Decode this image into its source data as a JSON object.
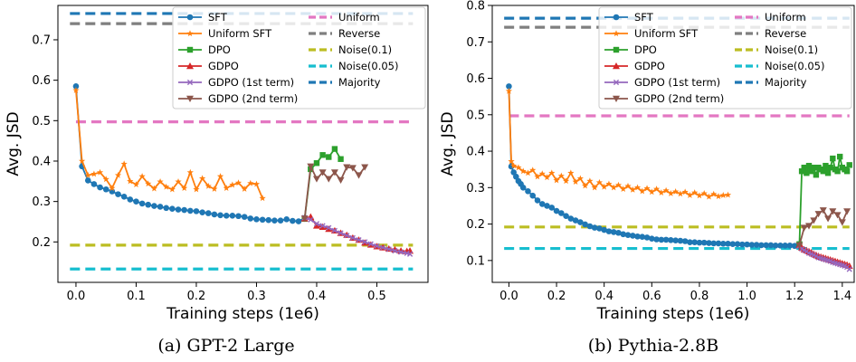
{
  "legend": [
    {
      "key": "sft",
      "label": "SFT",
      "color": "#1f77b4",
      "marker": "circle"
    },
    {
      "key": "usft",
      "label": "Uniform SFT",
      "color": "#ff7f0e",
      "marker": "star"
    },
    {
      "key": "dpo",
      "label": "DPO",
      "color": "#2ca02c",
      "marker": "square"
    },
    {
      "key": "gdpo",
      "label": "GDPO",
      "color": "#d62728",
      "marker": "triangle-up"
    },
    {
      "key": "g1",
      "label": "GDPO (1st term)",
      "color": "#9467bd",
      "marker": "x"
    },
    {
      "key": "g2",
      "label": "GDPO (2nd term)",
      "color": "#8c564b",
      "marker": "triangle-down"
    },
    {
      "key": "uniform",
      "label": "Uniform",
      "color": "#e377c2",
      "marker": "dashed"
    },
    {
      "key": "reverse",
      "label": "Reverse",
      "color": "#7f7f7f",
      "marker": "dashed"
    },
    {
      "key": "n01",
      "label": "Noise(0.1)",
      "color": "#bcbd22",
      "marker": "dashed"
    },
    {
      "key": "n005",
      "label": "Noise(0.05)",
      "color": "#17becf",
      "marker": "dashed"
    },
    {
      "key": "majority",
      "label": "Majority",
      "color": "#1f77b4",
      "marker": "dashed"
    }
  ],
  "chart_data": [
    {
      "type": "line",
      "caption": "(a) GPT-2 Large",
      "xlabel": "Training steps (1e6)",
      "ylabel": "Avg. JSD",
      "xlim": [
        -0.03,
        0.585
      ],
      "ylim": [
        0.1,
        0.785
      ],
      "xticks": [
        0.0,
        0.1,
        0.2,
        0.3,
        0.4,
        0.5
      ],
      "xticklabels": [
        "0.0",
        "0.1",
        "0.2",
        "0.3",
        "0.4",
        "0.5"
      ],
      "yticks": [
        0.2,
        0.3,
        0.4,
        0.5,
        0.6,
        0.7
      ],
      "yticklabels": [
        "0.2",
        "0.3",
        "0.4",
        "0.5",
        "0.6",
        "0.7"
      ],
      "hlines": [
        {
          "key": "majority",
          "y": 0.765,
          "x": [
            -0.01,
            0.56
          ]
        },
        {
          "key": "reverse",
          "y": 0.74,
          "x": [
            -0.01,
            0.56
          ]
        },
        {
          "key": "uniform",
          "y": 0.497,
          "x": [
            0.0,
            0.56
          ]
        },
        {
          "key": "n01",
          "y": 0.192,
          "x": [
            -0.01,
            0.56
          ]
        },
        {
          "key": "n005",
          "y": 0.133,
          "x": [
            -0.01,
            0.56
          ]
        }
      ],
      "series": [
        {
          "key": "sft",
          "x": [
            0.0,
            0.01,
            0.02,
            0.03,
            0.04,
            0.05,
            0.06,
            0.07,
            0.08,
            0.09,
            0.1,
            0.11,
            0.12,
            0.13,
            0.14,
            0.15,
            0.16,
            0.17,
            0.18,
            0.19,
            0.2,
            0.21,
            0.22,
            0.23,
            0.24,
            0.25,
            0.26,
            0.27,
            0.28,
            0.29,
            0.3,
            0.31,
            0.32,
            0.33,
            0.34,
            0.35,
            0.36,
            0.37,
            0.38
          ],
          "y": [
            0.585,
            0.387,
            0.352,
            0.343,
            0.335,
            0.33,
            0.325,
            0.318,
            0.312,
            0.305,
            0.3,
            0.295,
            0.292,
            0.289,
            0.287,
            0.284,
            0.282,
            0.28,
            0.279,
            0.277,
            0.276,
            0.273,
            0.271,
            0.268,
            0.266,
            0.265,
            0.265,
            0.264,
            0.262,
            0.258,
            0.256,
            0.255,
            0.254,
            0.253,
            0.253,
            0.256,
            0.252,
            0.251,
            0.259
          ]
        },
        {
          "key": "usft",
          "x": [
            0.0,
            0.01,
            0.02,
            0.03,
            0.04,
            0.05,
            0.06,
            0.07,
            0.08,
            0.09,
            0.1,
            0.11,
            0.12,
            0.13,
            0.14,
            0.15,
            0.16,
            0.17,
            0.18,
            0.19,
            0.2,
            0.21,
            0.22,
            0.23,
            0.24,
            0.25,
            0.26,
            0.27,
            0.28,
            0.29,
            0.3,
            0.31
          ],
          "y": [
            0.575,
            0.4,
            0.365,
            0.368,
            0.372,
            0.355,
            0.333,
            0.365,
            0.393,
            0.35,
            0.342,
            0.362,
            0.344,
            0.332,
            0.349,
            0.336,
            0.33,
            0.349,
            0.333,
            0.372,
            0.33,
            0.357,
            0.338,
            0.331,
            0.362,
            0.333,
            0.341,
            0.346,
            0.331,
            0.345,
            0.343,
            0.308
          ]
        },
        {
          "key": "dpo",
          "x": [
            0.38,
            0.39,
            0.4,
            0.41,
            0.42,
            0.43,
            0.44
          ],
          "y": [
            0.257,
            0.38,
            0.395,
            0.415,
            0.41,
            0.43,
            0.405
          ]
        },
        {
          "key": "gdpo",
          "x": [
            0.38,
            0.39,
            0.4,
            0.41,
            0.42,
            0.43,
            0.44,
            0.45,
            0.46,
            0.47,
            0.48,
            0.49,
            0.5,
            0.51,
            0.52,
            0.53,
            0.54,
            0.55,
            0.555
          ],
          "y": [
            0.258,
            0.262,
            0.24,
            0.237,
            0.232,
            0.228,
            0.222,
            0.217,
            0.21,
            0.205,
            0.198,
            0.193,
            0.189,
            0.186,
            0.183,
            0.181,
            0.178,
            0.177,
            0.178
          ]
        },
        {
          "key": "g1",
          "x": [
            0.38,
            0.39,
            0.4,
            0.41,
            0.42,
            0.43,
            0.44,
            0.45,
            0.46,
            0.47,
            0.48,
            0.49,
            0.5,
            0.51,
            0.52,
            0.53,
            0.54,
            0.55,
            0.555
          ],
          "y": [
            0.26,
            0.255,
            0.245,
            0.24,
            0.235,
            0.228,
            0.222,
            0.216,
            0.21,
            0.205,
            0.2,
            0.195,
            0.19,
            0.186,
            0.182,
            0.178,
            0.175,
            0.172,
            0.17
          ]
        },
        {
          "key": "g2",
          "x": [
            0.38,
            0.39,
            0.4,
            0.41,
            0.42,
            0.43,
            0.44,
            0.45,
            0.46,
            0.47,
            0.48
          ],
          "y": [
            0.258,
            0.387,
            0.356,
            0.372,
            0.356,
            0.372,
            0.353,
            0.385,
            0.383,
            0.365,
            0.385
          ]
        }
      ]
    },
    {
      "type": "line",
      "caption": "(b) Pythia-2.8B",
      "xlabel": "Training steps (1e6)",
      "ylabel": "Avg. JSD",
      "xlim": [
        -0.07,
        1.45
      ],
      "ylim": [
        0.04,
        0.8
      ],
      "xticks": [
        0.0,
        0.2,
        0.4,
        0.6,
        0.8,
        1.0,
        1.2,
        1.4
      ],
      "xticklabels": [
        "0.0",
        "0.2",
        "0.4",
        "0.6",
        "0.8",
        "1.0",
        "1.2",
        "1.4"
      ],
      "yticks": [
        0.1,
        0.2,
        0.3,
        0.4,
        0.5,
        0.6,
        0.7,
        0.8
      ],
      "yticklabels": [
        "0.1",
        "0.2",
        "0.3",
        "0.4",
        "0.5",
        "0.6",
        "0.7",
        "0.8"
      ],
      "hlines": [
        {
          "key": "majority",
          "y": 0.765,
          "x": [
            -0.02,
            1.43
          ]
        },
        {
          "key": "reverse",
          "y": 0.74,
          "x": [
            -0.02,
            1.43
          ]
        },
        {
          "key": "uniform",
          "y": 0.497,
          "x": [
            0.0,
            1.43
          ]
        },
        {
          "key": "n01",
          "y": 0.192,
          "x": [
            -0.02,
            1.43
          ]
        },
        {
          "key": "n005",
          "y": 0.133,
          "x": [
            -0.02,
            1.43
          ]
        }
      ],
      "series": [
        {
          "key": "sft",
          "x": [
            0.0,
            0.01,
            0.02,
            0.03,
            0.04,
            0.05,
            0.06,
            0.08,
            0.1,
            0.12,
            0.14,
            0.16,
            0.18,
            0.2,
            0.22,
            0.24,
            0.26,
            0.28,
            0.3,
            0.32,
            0.34,
            0.36,
            0.38,
            0.4,
            0.42,
            0.44,
            0.46,
            0.48,
            0.5,
            0.52,
            0.54,
            0.56,
            0.58,
            0.6,
            0.62,
            0.64,
            0.66,
            0.68,
            0.7,
            0.72,
            0.74,
            0.76,
            0.78,
            0.8,
            0.82,
            0.84,
            0.86,
            0.88,
            0.9,
            0.92,
            0.94,
            0.96,
            0.98,
            1.0,
            1.02,
            1.04,
            1.06,
            1.08,
            1.1,
            1.12,
            1.14,
            1.16,
            1.18,
            1.2,
            1.22
          ],
          "y": [
            0.578,
            0.358,
            0.342,
            0.33,
            0.318,
            0.31,
            0.3,
            0.29,
            0.278,
            0.265,
            0.255,
            0.25,
            0.245,
            0.236,
            0.23,
            0.222,
            0.215,
            0.21,
            0.205,
            0.199,
            0.194,
            0.19,
            0.188,
            0.184,
            0.18,
            0.178,
            0.176,
            0.172,
            0.17,
            0.168,
            0.166,
            0.165,
            0.163,
            0.16,
            0.158,
            0.157,
            0.157,
            0.156,
            0.155,
            0.154,
            0.153,
            0.15,
            0.15,
            0.149,
            0.149,
            0.148,
            0.147,
            0.147,
            0.146,
            0.146,
            0.145,
            0.145,
            0.144,
            0.144,
            0.143,
            0.143,
            0.142,
            0.142,
            0.142,
            0.141,
            0.141,
            0.141,
            0.141,
            0.14,
            0.14
          ]
        },
        {
          "key": "usft",
          "x": [
            0.0,
            0.01,
            0.02,
            0.04,
            0.06,
            0.08,
            0.1,
            0.12,
            0.14,
            0.16,
            0.18,
            0.2,
            0.22,
            0.24,
            0.26,
            0.28,
            0.3,
            0.32,
            0.34,
            0.36,
            0.38,
            0.4,
            0.42,
            0.44,
            0.46,
            0.48,
            0.5,
            0.52,
            0.54,
            0.56,
            0.58,
            0.6,
            0.62,
            0.64,
            0.66,
            0.68,
            0.7,
            0.72,
            0.74,
            0.76,
            0.78,
            0.8,
            0.82,
            0.84,
            0.86,
            0.88,
            0.9,
            0.92
          ],
          "y": [
            0.565,
            0.372,
            0.36,
            0.355,
            0.345,
            0.34,
            0.348,
            0.33,
            0.338,
            0.328,
            0.34,
            0.32,
            0.332,
            0.318,
            0.34,
            0.316,
            0.325,
            0.305,
            0.318,
            0.3,
            0.314,
            0.302,
            0.31,
            0.3,
            0.307,
            0.296,
            0.304,
            0.294,
            0.3,
            0.29,
            0.298,
            0.288,
            0.296,
            0.286,
            0.292,
            0.284,
            0.289,
            0.283,
            0.288,
            0.279,
            0.286,
            0.278,
            0.284,
            0.275,
            0.282,
            0.276,
            0.279,
            0.28
          ]
        },
        {
          "key": "dpo",
          "x": [
            1.22,
            1.23,
            1.24,
            1.25,
            1.26,
            1.27,
            1.28,
            1.29,
            1.3,
            1.31,
            1.32,
            1.33,
            1.34,
            1.35,
            1.36,
            1.37,
            1.38,
            1.39,
            1.4,
            1.41,
            1.42,
            1.43
          ],
          "y": [
            0.145,
            0.345,
            0.355,
            0.34,
            0.36,
            0.345,
            0.355,
            0.335,
            0.355,
            0.35,
            0.345,
            0.36,
            0.34,
            0.355,
            0.38,
            0.35,
            0.345,
            0.385,
            0.355,
            0.35,
            0.345,
            0.362
          ]
        },
        {
          "key": "gdpo",
          "x": [
            1.22,
            1.23,
            1.24,
            1.25,
            1.26,
            1.27,
            1.28,
            1.29,
            1.3,
            1.31,
            1.32,
            1.33,
            1.34,
            1.35,
            1.36,
            1.37,
            1.38,
            1.39,
            1.4,
            1.41,
            1.42,
            1.43
          ],
          "y": [
            0.142,
            0.135,
            0.13,
            0.128,
            0.125,
            0.122,
            0.118,
            0.115,
            0.112,
            0.11,
            0.108,
            0.106,
            0.104,
            0.102,
            0.1,
            0.098,
            0.096,
            0.094,
            0.092,
            0.09,
            0.088,
            0.085
          ]
        },
        {
          "key": "g1",
          "x": [
            1.22,
            1.23,
            1.24,
            1.25,
            1.26,
            1.27,
            1.28,
            1.29,
            1.3,
            1.31,
            1.32,
            1.33,
            1.34,
            1.35,
            1.36,
            1.37,
            1.38,
            1.39,
            1.4,
            1.41,
            1.42,
            1.43
          ],
          "y": [
            0.14,
            0.132,
            0.128,
            0.125,
            0.12,
            0.118,
            0.115,
            0.112,
            0.108,
            0.106,
            0.104,
            0.102,
            0.1,
            0.098,
            0.095,
            0.093,
            0.091,
            0.089,
            0.087,
            0.085,
            0.082,
            0.076
          ]
        },
        {
          "key": "g2",
          "x": [
            1.22,
            1.24,
            1.26,
            1.28,
            1.3,
            1.32,
            1.34,
            1.36,
            1.38,
            1.4,
            1.42
          ],
          "y": [
            0.142,
            0.19,
            0.195,
            0.21,
            0.228,
            0.238,
            0.215,
            0.235,
            0.225,
            0.205,
            0.235
          ]
        }
      ]
    }
  ]
}
